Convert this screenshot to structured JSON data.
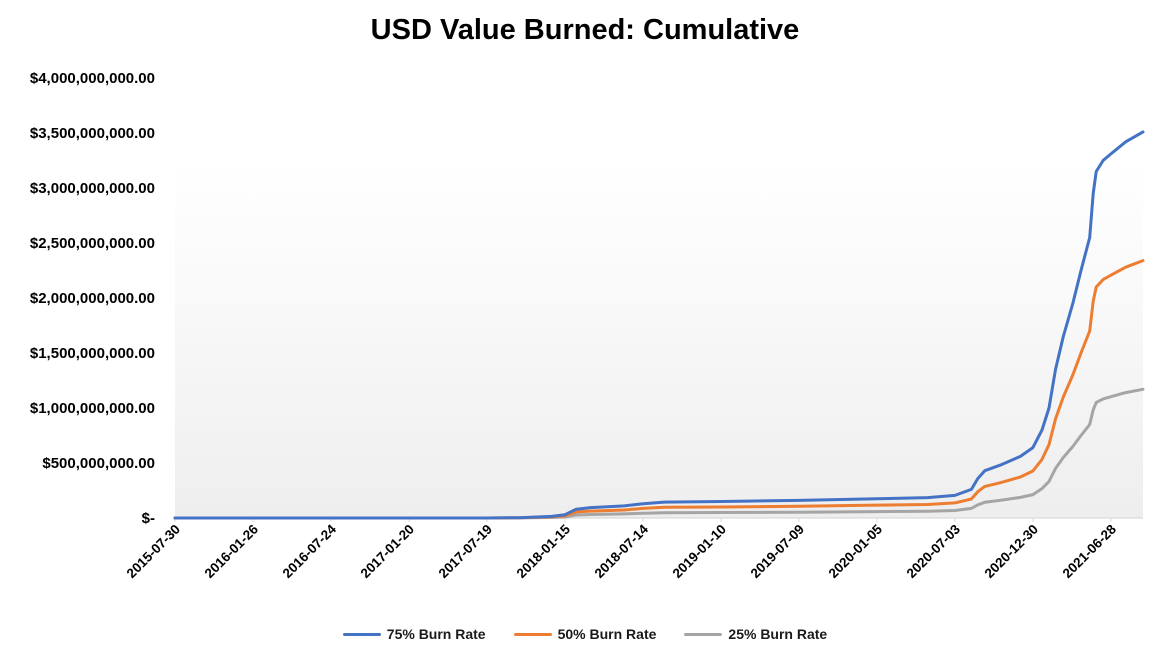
{
  "chart_data": {
    "type": "line",
    "title": "USD Value Burned: Cumulative",
    "xlabel": "",
    "ylabel": "",
    "x_tick_labels": [
      "2015-07-30",
      "2016-01-26",
      "2016-07-24",
      "2017-01-20",
      "2017-07-19",
      "2018-01-15",
      "2018-07-14",
      "2019-01-10",
      "2019-07-09",
      "2020-01-05",
      "2020-07-03",
      "2020-12-30",
      "2021-06-28"
    ],
    "y_tick_labels": [
      "$-",
      "$500,000,000.00",
      "$1,000,000,000.00",
      "$1,500,000,000.00",
      "$2,000,000,000.00",
      "$2,500,000,000.00",
      "$3,000,000,000.00",
      "$3,500,000,000.00",
      "$4,000,000,000.00"
    ],
    "ylim": [
      0,
      4000000000
    ],
    "xlim": [
      "2015-07-30",
      "2021-09-10"
    ],
    "grid": false,
    "legend_position": "bottom",
    "series": [
      {
        "name": "75% Burn Rate",
        "color": "#4472C4",
        "points": [
          [
            "2015-07-30",
            0
          ],
          [
            "2017-07-19",
            0
          ],
          [
            "2017-10-01",
            3000000
          ],
          [
            "2017-12-15",
            15000000
          ],
          [
            "2018-01-15",
            30000000
          ],
          [
            "2018-02-10",
            80000000
          ],
          [
            "2018-03-15",
            95000000
          ],
          [
            "2018-06-01",
            110000000
          ],
          [
            "2018-07-14",
            130000000
          ],
          [
            "2018-09-01",
            145000000
          ],
          [
            "2019-01-10",
            150000000
          ],
          [
            "2019-07-09",
            160000000
          ],
          [
            "2020-01-05",
            175000000
          ],
          [
            "2020-05-01",
            185000000
          ],
          [
            "2020-07-03",
            205000000
          ],
          [
            "2020-08-10",
            260000000
          ],
          [
            "2020-08-25",
            360000000
          ],
          [
            "2020-09-10",
            430000000
          ],
          [
            "2020-10-15",
            480000000
          ],
          [
            "2020-12-01",
            560000000
          ],
          [
            "2020-12-30",
            640000000
          ],
          [
            "2021-01-20",
            800000000
          ],
          [
            "2021-02-05",
            1000000000
          ],
          [
            "2021-02-20",
            1350000000
          ],
          [
            "2021-03-10",
            1650000000
          ],
          [
            "2021-04-01",
            1950000000
          ],
          [
            "2021-04-20",
            2250000000
          ],
          [
            "2021-05-10",
            2550000000
          ],
          [
            "2021-05-18",
            2950000000
          ],
          [
            "2021-05-25",
            3150000000
          ],
          [
            "2021-06-10",
            3250000000
          ],
          [
            "2021-06-28",
            3310000000
          ],
          [
            "2021-08-01",
            3420000000
          ],
          [
            "2021-09-10",
            3510000000
          ]
        ]
      },
      {
        "name": "50% Burn Rate",
        "color": "#ED7D31",
        "points": [
          [
            "2015-07-30",
            0
          ],
          [
            "2017-07-19",
            0
          ],
          [
            "2017-10-01",
            2000000
          ],
          [
            "2017-12-15",
            10000000
          ],
          [
            "2018-01-15",
            20000000
          ],
          [
            "2018-02-10",
            55000000
          ],
          [
            "2018-03-15",
            63000000
          ],
          [
            "2018-06-01",
            73000000
          ],
          [
            "2018-07-14",
            87000000
          ],
          [
            "2018-09-01",
            97000000
          ],
          [
            "2019-01-10",
            100000000
          ],
          [
            "2019-07-09",
            107000000
          ],
          [
            "2020-01-05",
            117000000
          ],
          [
            "2020-05-01",
            123000000
          ],
          [
            "2020-07-03",
            137000000
          ],
          [
            "2020-08-10",
            173000000
          ],
          [
            "2020-08-25",
            240000000
          ],
          [
            "2020-09-10",
            287000000
          ],
          [
            "2020-10-15",
            320000000
          ],
          [
            "2020-12-01",
            373000000
          ],
          [
            "2020-12-30",
            427000000
          ],
          [
            "2021-01-20",
            533000000
          ],
          [
            "2021-02-05",
            667000000
          ],
          [
            "2021-02-20",
            900000000
          ],
          [
            "2021-03-10",
            1100000000
          ],
          [
            "2021-04-01",
            1300000000
          ],
          [
            "2021-04-20",
            1500000000
          ],
          [
            "2021-05-10",
            1700000000
          ],
          [
            "2021-05-18",
            1970000000
          ],
          [
            "2021-05-25",
            2100000000
          ],
          [
            "2021-06-10",
            2167000000
          ],
          [
            "2021-06-28",
            2207000000
          ],
          [
            "2021-08-01",
            2280000000
          ],
          [
            "2021-09-10",
            2340000000
          ]
        ]
      },
      {
        "name": "25% Burn Rate",
        "color": "#A5A5A5",
        "points": [
          [
            "2015-07-30",
            0
          ],
          [
            "2017-07-19",
            0
          ],
          [
            "2017-10-01",
            1000000
          ],
          [
            "2017-12-15",
            5000000
          ],
          [
            "2018-01-15",
            10000000
          ],
          [
            "2018-02-10",
            27000000
          ],
          [
            "2018-03-15",
            32000000
          ],
          [
            "2018-06-01",
            37000000
          ],
          [
            "2018-07-14",
            43000000
          ],
          [
            "2018-09-01",
            48000000
          ],
          [
            "2019-01-10",
            50000000
          ],
          [
            "2019-07-09",
            53000000
          ],
          [
            "2020-01-05",
            58000000
          ],
          [
            "2020-05-01",
            62000000
          ],
          [
            "2020-07-03",
            68000000
          ],
          [
            "2020-08-10",
            87000000
          ],
          [
            "2020-08-25",
            120000000
          ],
          [
            "2020-09-10",
            143000000
          ],
          [
            "2020-10-15",
            160000000
          ],
          [
            "2020-12-01",
            187000000
          ],
          [
            "2020-12-30",
            213000000
          ],
          [
            "2021-01-20",
            267000000
          ],
          [
            "2021-02-05",
            333000000
          ],
          [
            "2021-02-20",
            450000000
          ],
          [
            "2021-03-10",
            550000000
          ],
          [
            "2021-04-01",
            650000000
          ],
          [
            "2021-04-20",
            750000000
          ],
          [
            "2021-05-10",
            850000000
          ],
          [
            "2021-05-18",
            983000000
          ],
          [
            "2021-05-25",
            1050000000
          ],
          [
            "2021-06-10",
            1083000000
          ],
          [
            "2021-06-28",
            1103000000
          ],
          [
            "2021-08-01",
            1140000000
          ],
          [
            "2021-09-10",
            1170000000
          ]
        ]
      }
    ]
  }
}
